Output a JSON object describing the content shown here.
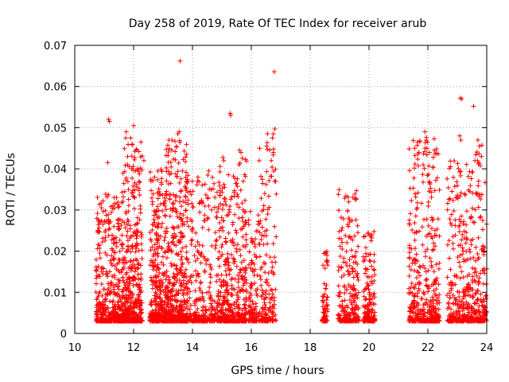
{
  "chart_data": {
    "type": "scatter",
    "title": "Day 258 of 2019, Rate Of TEC Index for receiver arub",
    "xlabel": "GPS time / hours",
    "ylabel": "ROTI / TECUs",
    "xlim": [
      10,
      24
    ],
    "ylim": [
      0,
      0.07
    ],
    "grid": true,
    "marker": "+",
    "color": "#ff0000",
    "x_ticks": [
      10,
      12,
      14,
      16,
      18,
      20,
      22,
      24
    ],
    "x_tick_labels": [
      "10",
      "12",
      "14",
      "16",
      "18",
      "20",
      "22",
      "24"
    ],
    "y_ticks": [
      0,
      0.01,
      0.02,
      0.03,
      0.04,
      0.05,
      0.06,
      0.07
    ],
    "y_tick_labels": [
      "0",
      "0.01",
      "0.02",
      "0.03",
      "0.04",
      "0.05",
      "0.06",
      "0.07"
    ],
    "series": [
      {
        "name": "ROTI",
        "clusters": [
          {
            "x_range": [
              10.72,
              11.6
            ],
            "n": 420,
            "y_max": 0.034
          },
          {
            "x_range": [
              11.6,
              12.3
            ],
            "n": 480,
            "y_max": 0.046
          },
          {
            "x_range": [
              12.55,
              13.1
            ],
            "n": 360,
            "y_max": 0.04
          },
          {
            "x_range": [
              13.1,
              13.85
            ],
            "n": 520,
            "y_max": 0.047
          },
          {
            "x_range": [
              13.85,
              14.9
            ],
            "n": 300,
            "y_max": 0.039
          },
          {
            "x_range": [
              14.9,
              15.85
            ],
            "n": 460,
            "y_max": 0.044
          },
          {
            "x_range": [
              15.9,
              16.25
            ],
            "n": 110,
            "y_max": 0.03
          },
          {
            "x_range": [
              16.25,
              16.85
            ],
            "n": 170,
            "y_max": 0.048
          },
          {
            "x_range": [
              18.4,
              18.6
            ],
            "n": 70,
            "y_max": 0.02
          },
          {
            "x_range": [
              18.95,
              19.65
            ],
            "n": 240,
            "y_max": 0.035
          },
          {
            "x_range": [
              19.8,
              20.2
            ],
            "n": 160,
            "y_max": 0.025
          },
          {
            "x_range": [
              21.35,
              22.4
            ],
            "n": 420,
            "y_max": 0.048
          },
          {
            "x_range": [
              22.65,
              23.6
            ],
            "n": 340,
            "y_max": 0.042
          },
          {
            "x_range": [
              23.6,
              24.0
            ],
            "n": 160,
            "y_max": 0.047
          }
        ],
        "points": [
          [
            11.15,
            0.052
          ],
          [
            11.18,
            0.0515
          ],
          [
            11.12,
            0.0415
          ],
          [
            11.75,
            0.049
          ],
          [
            11.73,
            0.0475
          ],
          [
            11.9,
            0.0475
          ],
          [
            11.95,
            0.046
          ],
          [
            12.0,
            0.0505
          ],
          [
            11.8,
            0.041
          ],
          [
            11.85,
            0.0405
          ],
          [
            12.25,
            0.0465
          ],
          [
            12.35,
            0.042
          ],
          [
            13.2,
            0.047
          ],
          [
            13.3,
            0.047
          ],
          [
            13.5,
            0.0485
          ],
          [
            13.55,
            0.049
          ],
          [
            13.58,
            0.0662
          ],
          [
            14.55,
            0.0395
          ],
          [
            15.28,
            0.0535
          ],
          [
            15.3,
            0.053
          ],
          [
            15.6,
            0.0445
          ],
          [
            15.65,
            0.044
          ],
          [
            16.52,
            0.0455
          ],
          [
            16.55,
            0.0485
          ],
          [
            16.75,
            0.0485
          ],
          [
            16.8,
            0.0497
          ],
          [
            16.78,
            0.0636
          ],
          [
            16.72,
            0.0475
          ],
          [
            16.75,
            0.044
          ],
          [
            16.68,
            0.042
          ],
          [
            21.55,
            0.045
          ],
          [
            21.65,
            0.0465
          ],
          [
            21.9,
            0.049
          ],
          [
            21.95,
            0.047
          ],
          [
            21.7,
            0.044
          ],
          [
            22.05,
            0.044
          ],
          [
            23.1,
            0.0572
          ],
          [
            23.15,
            0.057
          ],
          [
            23.08,
            0.048
          ],
          [
            23.12,
            0.047
          ],
          [
            23.55,
            0.0552
          ],
          [
            23.7,
            0.047
          ],
          [
            23.75,
            0.0455
          ],
          [
            23.82,
            0.043
          ],
          [
            23.6,
            0.042
          ]
        ]
      }
    ]
  }
}
